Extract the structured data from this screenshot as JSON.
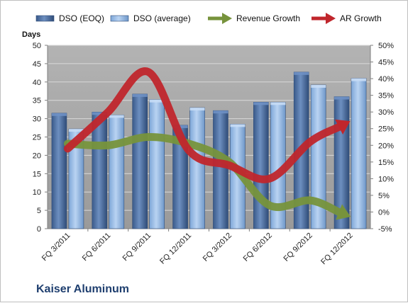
{
  "chart_data": {
    "type": "bar",
    "categories": [
      "FQ 3/2011",
      "FQ 6/2011",
      "FQ 9/2011",
      "FQ 12/2011",
      "FQ 3/2012",
      "FQ 6/2012",
      "FQ 9/2012",
      "FQ 12/2012"
    ],
    "series": [
      {
        "name": "DSO (EOQ)",
        "type": "bar",
        "axis": "left",
        "color": "#4f6f9f",
        "values": [
          31.5,
          31.8,
          36.7,
          28.2,
          32.2,
          34.5,
          42.7,
          36.0
        ]
      },
      {
        "name": "DSO (average)",
        "type": "bar",
        "axis": "left",
        "color": "#8db3e2",
        "values": [
          27.2,
          31.0,
          35.2,
          33.0,
          28.5,
          34.5,
          39.2,
          41.0
        ]
      },
      {
        "name": "Revenue Growth",
        "type": "line",
        "axis": "right",
        "color": "#77933c",
        "unit": "%",
        "values": [
          20.5,
          20.0,
          22.5,
          20.5,
          15.0,
          2.0,
          3.5,
          0.0
        ]
      },
      {
        "name": "AR Growth",
        "type": "line",
        "axis": "right",
        "color": "#c0262c",
        "unit": "%",
        "values": [
          19.0,
          30.0,
          42.0,
          18.5,
          14.0,
          10.0,
          21.0,
          25.5
        ]
      }
    ],
    "left_axis": {
      "label": "Days",
      "min": 0,
      "max": 50,
      "ticks": [
        "0",
        "5",
        "10",
        "15",
        "20",
        "25",
        "30",
        "35",
        "40",
        "45",
        "50"
      ]
    },
    "right_axis": {
      "min": -5,
      "max": 50,
      "ticks": [
        "-5%",
        "0%",
        "5%",
        "10%",
        "15%",
        "20%",
        "25%",
        "30%",
        "35%",
        "40%",
        "45%",
        "50%"
      ]
    },
    "legend_position": "top",
    "plot_background": "#a6a6a6",
    "grid": true,
    "company": "Kaiser Aluminum"
  }
}
